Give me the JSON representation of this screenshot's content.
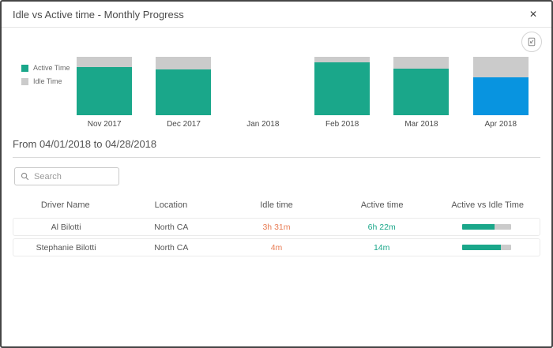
{
  "header": {
    "title": "Idle vs Active time - Monthly Progress",
    "close_glyph": "✕"
  },
  "toolbar": {
    "export_icon": "export-image-icon"
  },
  "chart_data": {
    "type": "bar",
    "stacked": true,
    "unit": "percent",
    "categories": [
      "Nov 2017",
      "Dec 2017",
      "Jan 2018",
      "Feb 2018",
      "Mar 2018",
      "Apr 2018"
    ],
    "series": [
      {
        "name": "Active Time",
        "color": "#1aa78a",
        "values": [
          82,
          78,
          0,
          90,
          80,
          65
        ]
      },
      {
        "name": "Idle Time",
        "color": "#cbcbcb",
        "values": [
          18,
          22,
          0,
          10,
          20,
          35
        ]
      }
    ],
    "highlight_category": "Apr 2018",
    "highlight_color": "#0894e0",
    "legend_position": "left",
    "ylim": [
      0,
      100
    ],
    "axes_hidden": true
  },
  "period": {
    "label": "From 04/01/2018 to 04/28/2018"
  },
  "search": {
    "placeholder": "Search",
    "value": ""
  },
  "table": {
    "columns": [
      "Driver Name",
      "Location",
      "Idle time",
      "Active time",
      "Active vs Idle Time"
    ],
    "rows": [
      {
        "driver_name": "Al Bilotti",
        "location": "North CA",
        "idle_time": "3h 31m",
        "active_time": "6h 22m",
        "active_pct": 65
      },
      {
        "driver_name": "Stephanie Bilotti",
        "location": "North CA",
        "idle_time": "4m",
        "active_time": "14m",
        "active_pct": 78
      }
    ],
    "colors": {
      "idle_text": "#e87c54",
      "active_text": "#1aa78a",
      "bar_fill": "#1aa78a",
      "bar_track": "#cbcbcb"
    }
  }
}
